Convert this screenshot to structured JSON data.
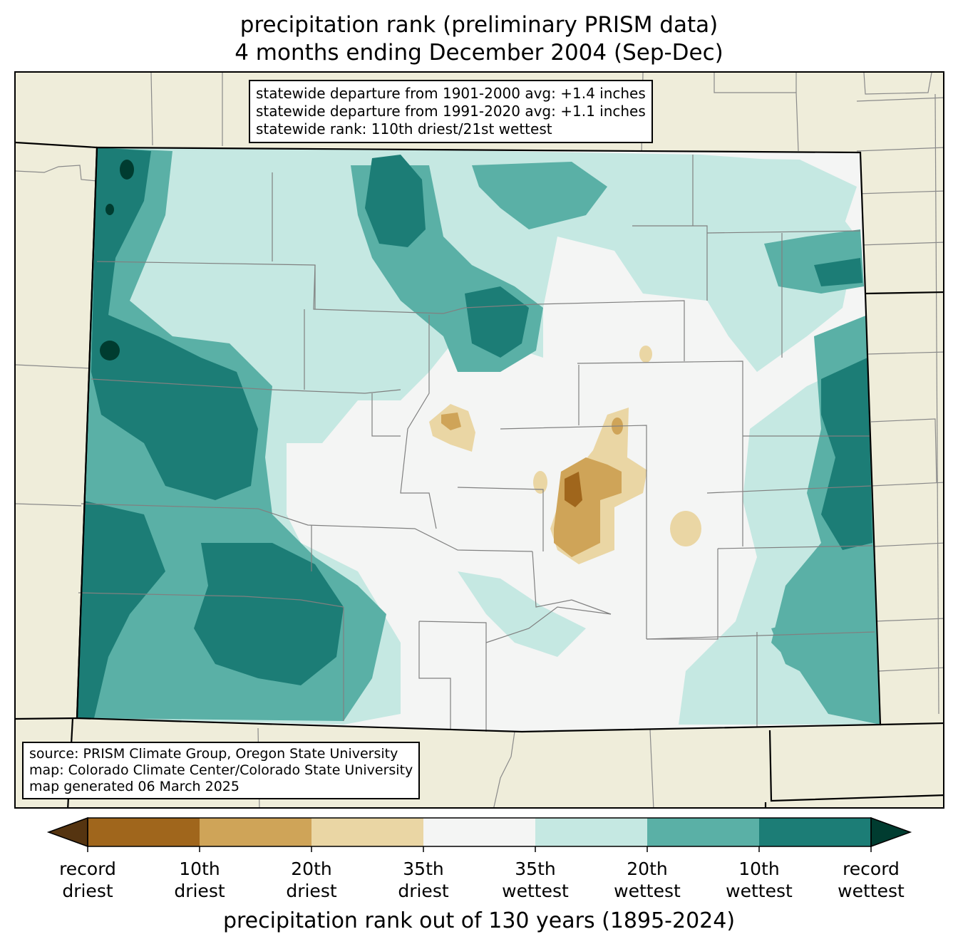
{
  "title": {
    "line1": "precipitation rank (preliminary PRISM data)",
    "line2": "4 months ending December 2004 (Sep-Dec)"
  },
  "stats_box": {
    "line1": "statewide departure from 1901-2000 avg: +1.4 inches",
    "line2": "statewide departure from 1991-2020 avg: +1.1 inches",
    "line3": "statewide rank: 110th driest/21st wettest"
  },
  "source_box": {
    "line1": "source: PRISM Climate Group, Oregon State University",
    "line2": "map: Colorado Climate Center/Colorado State University",
    "line3": "map generated 06 March 2025"
  },
  "colorbar": {
    "label": "precipitation rank out of 130 years (1895-2024)",
    "colors": [
      "#a0661c",
      "#cfa458",
      "#ead6a4",
      "#f4f5f4",
      "#c5e8e2",
      "#5ab0a6",
      "#1c7d76"
    ],
    "extend_low_color": "#553410",
    "extend_high_color": "#003c30",
    "ticks": [
      {
        "line1": "record",
        "line2": "driest"
      },
      {
        "line1": "10th",
        "line2": "driest"
      },
      {
        "line1": "20th",
        "line2": "driest"
      },
      {
        "line1": "35th",
        "line2": "driest"
      },
      {
        "line1": "35th",
        "line2": "wettest"
      },
      {
        "line1": "20th",
        "line2": "wettest"
      },
      {
        "line1": "10th",
        "line2": "wettest"
      },
      {
        "line1": "record",
        "line2": "wettest"
      }
    ]
  },
  "map": {
    "background_color": "#efedda",
    "state_fill_color": "#f4f5f4"
  }
}
